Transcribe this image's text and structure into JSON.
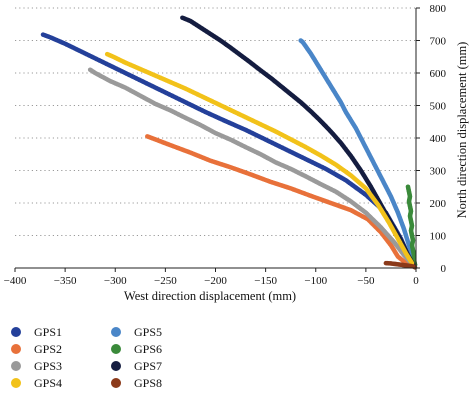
{
  "chart_data": {
    "type": "scatter",
    "xlabel": "West direction displacement (mm)",
    "ylabel": "North direction displacement (mm)",
    "xlim": [
      -400,
      0
    ],
    "ylim": [
      0,
      800
    ],
    "x_ticks": [
      -400,
      -350,
      -300,
      -250,
      -200,
      -150,
      -100,
      -50,
      0
    ],
    "y_ticks": [
      0,
      100,
      200,
      300,
      400,
      500,
      600,
      700,
      800
    ],
    "grid": "horizontal-dotted",
    "legend": "bottom",
    "series": [
      {
        "name": "GPS1",
        "color": "#24409a",
        "points": [
          [
            -372,
            718
          ],
          [
            -365,
            710
          ],
          [
            -350,
            690
          ],
          [
            -330,
            660
          ],
          [
            -310,
            630
          ],
          [
            -290,
            600
          ],
          [
            -270,
            570
          ],
          [
            -250,
            540
          ],
          [
            -230,
            510
          ],
          [
            -210,
            480
          ],
          [
            -190,
            452
          ],
          [
            -170,
            425
          ],
          [
            -150,
            395
          ],
          [
            -130,
            365
          ],
          [
            -110,
            335
          ],
          [
            -90,
            305
          ],
          [
            -70,
            270
          ],
          [
            -50,
            225
          ],
          [
            -30,
            170
          ],
          [
            -15,
            90
          ],
          [
            -5,
            20
          ],
          [
            -2,
            5
          ]
        ]
      },
      {
        "name": "GPS5",
        "color": "#4a86c8",
        "points": [
          [
            -115,
            700
          ],
          [
            -113,
            695
          ],
          [
            -105,
            660
          ],
          [
            -95,
            610
          ],
          [
            -85,
            560
          ],
          [
            -75,
            510
          ],
          [
            -70,
            480
          ],
          [
            -65,
            455
          ],
          [
            -60,
            430
          ],
          [
            -55,
            400
          ],
          [
            -45,
            340
          ],
          [
            -35,
            280
          ],
          [
            -25,
            220
          ],
          [
            -18,
            170
          ],
          [
            -12,
            120
          ],
          [
            -8,
            80
          ],
          [
            -4,
            40
          ],
          [
            -1,
            10
          ]
        ]
      },
      {
        "name": "GPS2",
        "color": "#e8713a",
        "points": [
          [
            -268,
            405
          ],
          [
            -262,
            398
          ],
          [
            -245,
            378
          ],
          [
            -225,
            355
          ],
          [
            -205,
            330
          ],
          [
            -185,
            310
          ],
          [
            -165,
            288
          ],
          [
            -145,
            265
          ],
          [
            -125,
            245
          ],
          [
            -105,
            222
          ],
          [
            -85,
            200
          ],
          [
            -65,
            178
          ],
          [
            -48,
            150
          ],
          [
            -35,
            110
          ],
          [
            -25,
            70
          ],
          [
            -18,
            35
          ],
          [
            -10,
            15
          ],
          [
            -5,
            5
          ]
        ]
      },
      {
        "name": "GPS6",
        "color": "#3a8a3a",
        "points": [
          [
            -8,
            250
          ],
          [
            -7,
            235
          ],
          [
            -6,
            220
          ],
          [
            -7,
            205
          ],
          [
            -6,
            190
          ],
          [
            -5,
            175
          ],
          [
            -6,
            160
          ],
          [
            -5,
            145
          ],
          [
            -4,
            130
          ],
          [
            -5,
            115
          ],
          [
            -4,
            100
          ],
          [
            -3,
            85
          ],
          [
            -4,
            70
          ],
          [
            -3,
            55
          ],
          [
            -2,
            40
          ],
          [
            -2,
            25
          ],
          [
            -1,
            10
          ]
        ]
      },
      {
        "name": "GPS3",
        "color": "#9a9a9a",
        "points": [
          [
            -325,
            610
          ],
          [
            -320,
            600
          ],
          [
            -305,
            575
          ],
          [
            -290,
            555
          ],
          [
            -275,
            530
          ],
          [
            -260,
            505
          ],
          [
            -245,
            485
          ],
          [
            -230,
            462
          ],
          [
            -215,
            440
          ],
          [
            -200,
            415
          ],
          [
            -185,
            395
          ],
          [
            -170,
            372
          ],
          [
            -155,
            350
          ],
          [
            -140,
            325
          ],
          [
            -125,
            305
          ],
          [
            -110,
            282
          ],
          [
            -95,
            258
          ],
          [
            -80,
            235
          ],
          [
            -65,
            205
          ],
          [
            -50,
            170
          ],
          [
            -35,
            125
          ],
          [
            -22,
            80
          ],
          [
            -12,
            40
          ],
          [
            -5,
            15
          ]
        ]
      },
      {
        "name": "GPS7",
        "color": "#151d40",
        "points": [
          [
            -233,
            770
          ],
          [
            -225,
            760
          ],
          [
            -215,
            740
          ],
          [
            -205,
            720
          ],
          [
            -195,
            700
          ],
          [
            -185,
            678
          ],
          [
            -175,
            655
          ],
          [
            -165,
            632
          ],
          [
            -155,
            608
          ],
          [
            -145,
            585
          ],
          [
            -135,
            560
          ],
          [
            -125,
            535
          ],
          [
            -115,
            510
          ],
          [
            -105,
            482
          ],
          [
            -95,
            452
          ],
          [
            -85,
            420
          ],
          [
            -75,
            385
          ],
          [
            -65,
            345
          ],
          [
            -55,
            300
          ],
          [
            -45,
            250
          ],
          [
            -35,
            195
          ],
          [
            -25,
            140
          ],
          [
            -15,
            85
          ],
          [
            -8,
            40
          ],
          [
            -3,
            12
          ]
        ]
      },
      {
        "name": "GPS4",
        "color": "#f2c21a",
        "points": [
          [
            -308,
            658
          ],
          [
            -302,
            650
          ],
          [
            -290,
            632
          ],
          [
            -275,
            612
          ],
          [
            -260,
            592
          ],
          [
            -245,
            572
          ],
          [
            -230,
            552
          ],
          [
            -215,
            530
          ],
          [
            -200,
            508
          ],
          [
            -185,
            486
          ],
          [
            -170,
            464
          ],
          [
            -155,
            442
          ],
          [
            -140,
            420
          ],
          [
            -125,
            396
          ],
          [
            -110,
            372
          ],
          [
            -95,
            346
          ],
          [
            -80,
            318
          ],
          [
            -65,
            285
          ],
          [
            -50,
            245
          ],
          [
            -38,
            195
          ],
          [
            -27,
            140
          ],
          [
            -18,
            90
          ],
          [
            -10,
            45
          ],
          [
            -4,
            15
          ]
        ]
      },
      {
        "name": "GPS8",
        "color": "#8b3a1a",
        "points": [
          [
            -30,
            15
          ],
          [
            -25,
            14
          ],
          [
            -20,
            12
          ],
          [
            -15,
            10
          ],
          [
            -10,
            8
          ],
          [
            -5,
            6
          ],
          [
            -2,
            4
          ],
          [
            -1,
            2
          ]
        ]
      }
    ]
  }
}
